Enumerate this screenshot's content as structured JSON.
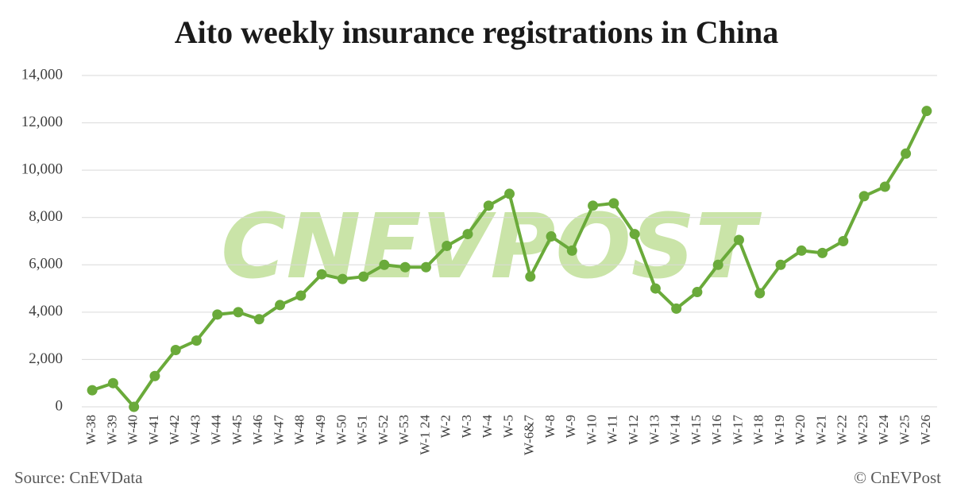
{
  "chart_data": {
    "type": "line",
    "title": "Aito weekly insurance registrations in China",
    "watermark": "CNEVPOST",
    "source": "Source: CnEVData",
    "credit": "© CnEVPost",
    "categories": [
      "W-38",
      "W-39",
      "W-40",
      "W-41",
      "W-42",
      "W-43",
      "W-44",
      "W-45",
      "W-46",
      "W-47",
      "W-48",
      "W-49",
      "W-50",
      "W-51",
      "W-52",
      "W-53",
      "W-1 24",
      "W-2",
      "W-3",
      "W-4",
      "W-5",
      "W-6&7",
      "W-8",
      "W-9",
      "W-10",
      "W-11",
      "W-12",
      "W-13",
      "W-14",
      "W-15",
      "W-16",
      "W-17",
      "W-18",
      "W-19",
      "W-20",
      "W-21",
      "W-22",
      "W-23",
      "W-24",
      "W-25",
      "W-26"
    ],
    "values": [
      700,
      1000,
      0,
      1300,
      2400,
      2800,
      3900,
      4000,
      3700,
      4300,
      4700,
      5600,
      5400,
      5500,
      6000,
      5900,
      5900,
      6800,
      7300,
      8500,
      9000,
      5500,
      7200,
      6600,
      8500,
      8600,
      7300,
      5000,
      4150,
      4850,
      6000,
      7050,
      4800,
      6000,
      6600,
      6500,
      7000,
      8900,
      9300,
      10700,
      12500
    ],
    "color": "#6aaa3a",
    "ylim": [
      0,
      14000
    ],
    "yticks": [
      0,
      {
        "value": 2000,
        "label": "2,000"
      },
      {
        "value": 4000,
        "label": "4,000"
      },
      {
        "value": 6000,
        "label": "6,000"
      },
      {
        "value": 8000,
        "label": "8,000"
      },
      {
        "value": 10000,
        "label": "10,000"
      },
      {
        "value": 12000,
        "label": "12,000"
      },
      {
        "value": 14000,
        "label": "14,000"
      }
    ],
    "grid": true
  }
}
